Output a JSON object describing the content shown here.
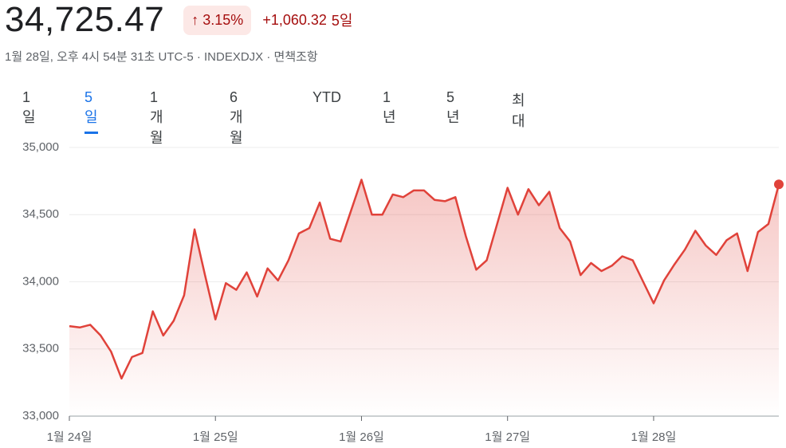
{
  "header": {
    "price": "34,725.47",
    "change_pct": "3.15%",
    "change_abs": "+1,060.32",
    "period": "5일",
    "subtitle": "1월 28일, 오후 4시 54분 31초 UTC-5 · INDEXDJX · 면책조항"
  },
  "tabs": {
    "items": [
      "1일",
      "5일",
      "1개월",
      "6개월",
      "YTD",
      "1년",
      "5년",
      "최대"
    ],
    "selected": 1
  },
  "chart_data": {
    "type": "line",
    "color": "#e0423a",
    "grid": true,
    "x": [
      0,
      1,
      2,
      3,
      4,
      5,
      6,
      7,
      8,
      9,
      10,
      11,
      12,
      13,
      14,
      15,
      16,
      17,
      18,
      19,
      20,
      21,
      22,
      23,
      24,
      25,
      26,
      27,
      28,
      29,
      30,
      31,
      32,
      33,
      34,
      35,
      36,
      37,
      38,
      39,
      40,
      41,
      42,
      43,
      44,
      45,
      46,
      47,
      48,
      49,
      50,
      51,
      52,
      53,
      54,
      55,
      56,
      57,
      58,
      59,
      60,
      61,
      62,
      63,
      64,
      65,
      66,
      67,
      68
    ],
    "values": [
      33670,
      33660,
      33680,
      33600,
      33480,
      33280,
      33440,
      33470,
      33780,
      33600,
      33710,
      33900,
      34390,
      34050,
      33720,
      33990,
      33940,
      34070,
      33890,
      34100,
      34010,
      34160,
      34360,
      34400,
      34590,
      34320,
      34300,
      34530,
      34760,
      34500,
      34500,
      34650,
      34630,
      34680,
      34680,
      34610,
      34600,
      34630,
      34340,
      34090,
      34160,
      34430,
      34700,
      34500,
      34690,
      34570,
      34670,
      34400,
      34300,
      34050,
      34140,
      34080,
      34120,
      34190,
      34160,
      34000,
      33840,
      34010,
      34130,
      34240,
      34380,
      34270,
      34200,
      34310,
      34360,
      34080,
      34370,
      34430,
      34725.47
    ],
    "xlim": [
      0,
      68
    ],
    "xticks": [
      {
        "value": 0,
        "label": "1월 24일"
      },
      {
        "value": 14,
        "label": "1월 25일"
      },
      {
        "value": 28,
        "label": "1월 26일"
      },
      {
        "value": 42,
        "label": "1월 27일"
      },
      {
        "value": 56,
        "label": "1월 28일"
      }
    ],
    "ylim": [
      33000,
      35000
    ],
    "yticks": [
      {
        "value": 33000,
        "label": "33,000"
      },
      {
        "value": 33500,
        "label": "33,500"
      },
      {
        "value": 34000,
        "label": "34,000"
      },
      {
        "value": 34500,
        "label": "34,500"
      },
      {
        "value": 35000,
        "label": "35,000"
      }
    ]
  }
}
